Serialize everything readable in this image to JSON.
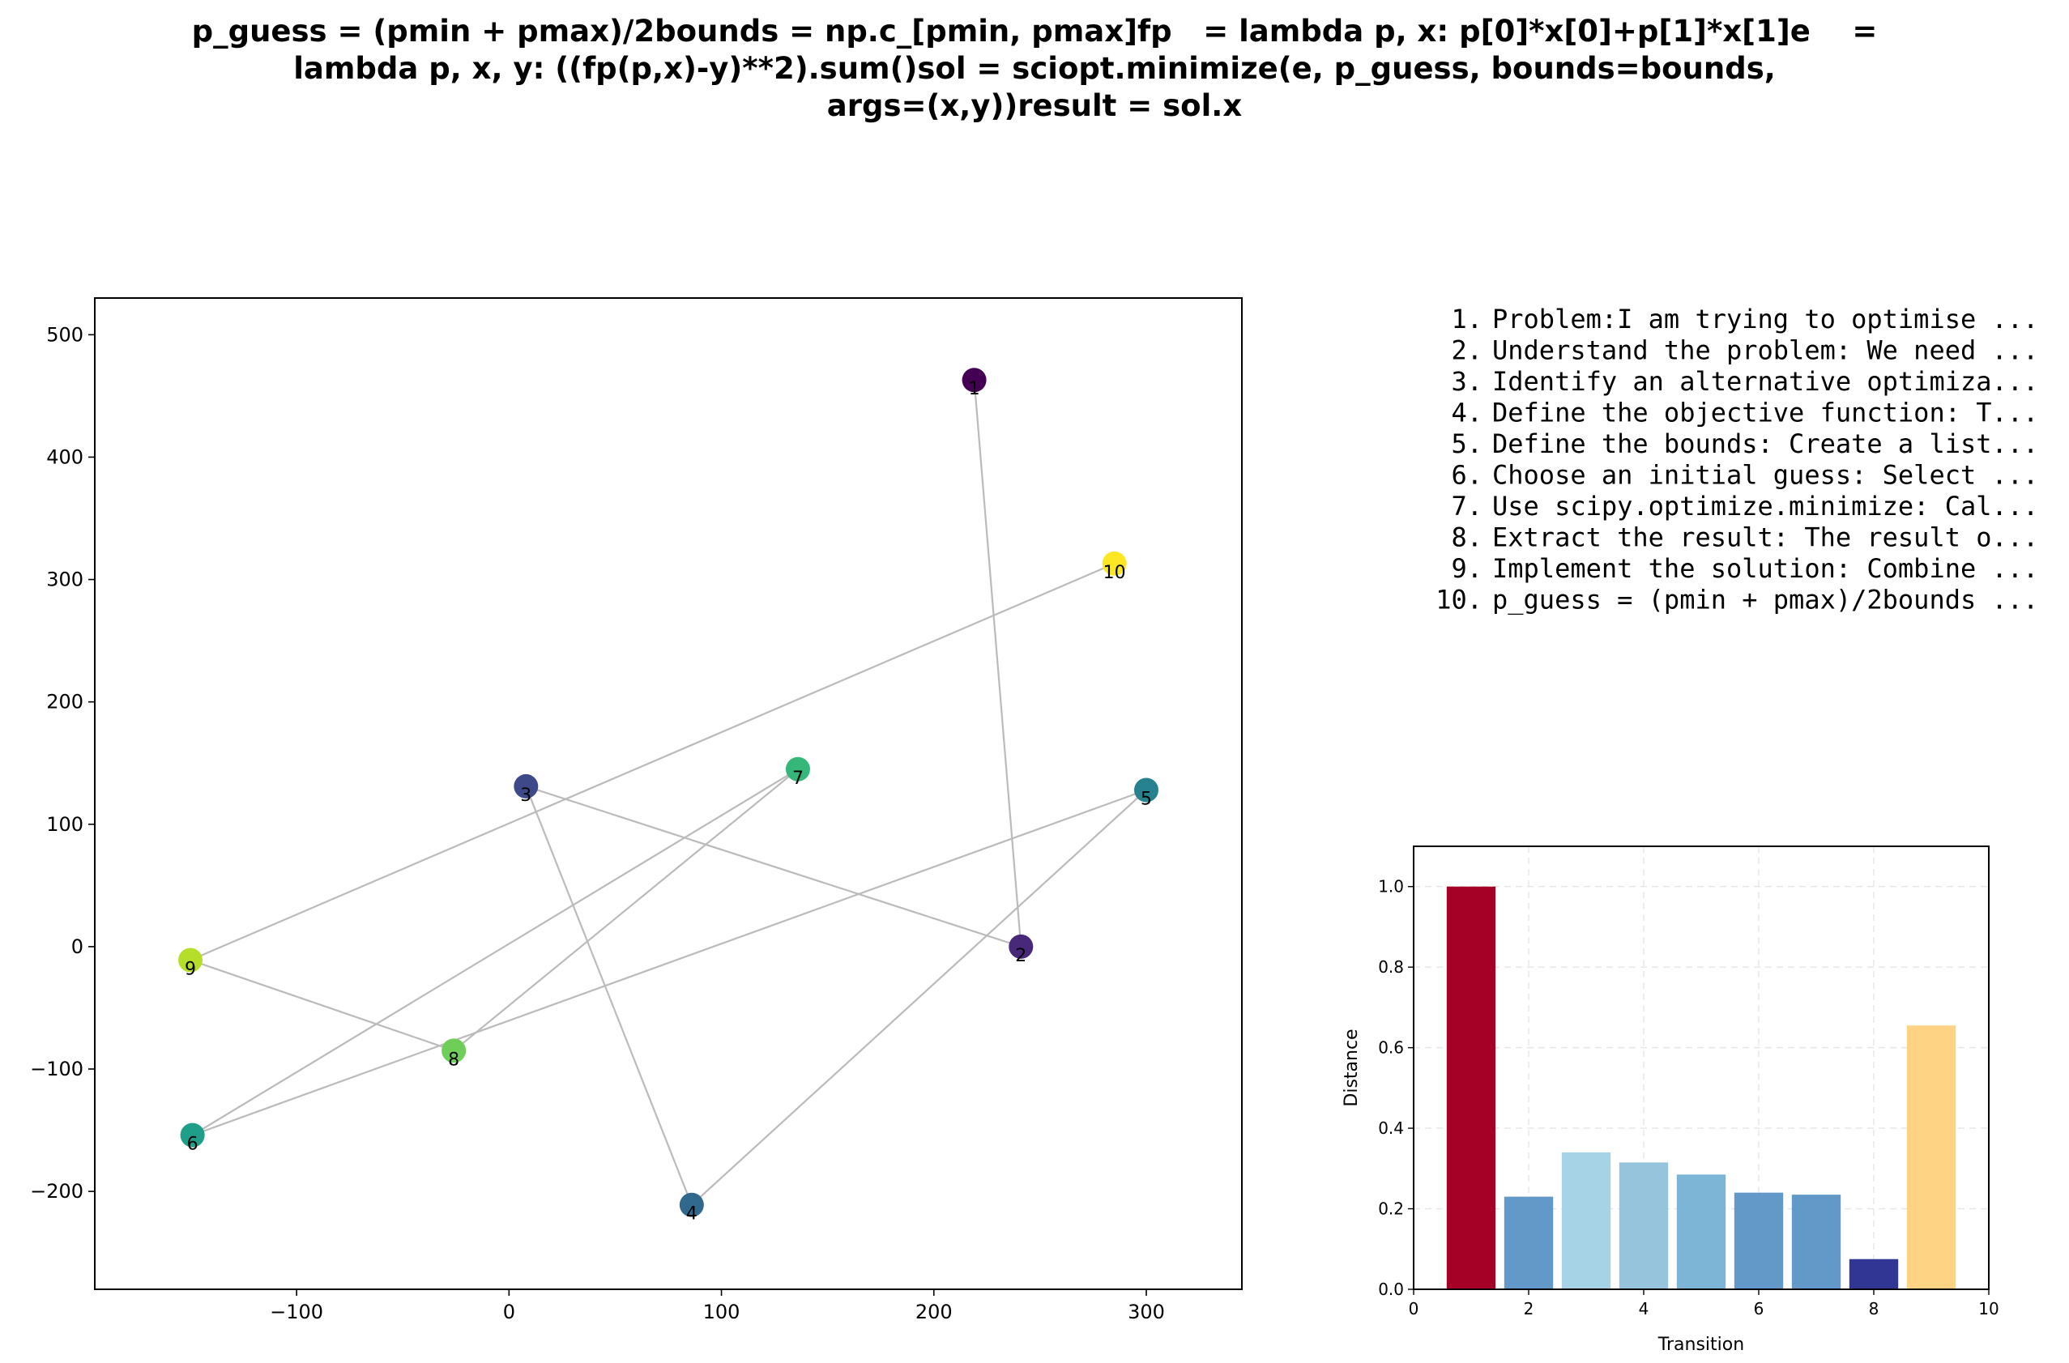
{
  "title_lines": [
    "p_guess = (pmin + pmax)/2bounds = np.c_[pmin, pmax]fp   = lambda p, x: p[0]*x[0]+p[1]*x[1]e    =",
    "lambda p, x, y: ((fp(p,x)-y)**2).sum()sol = sciopt.minimize(e, p_guess, bounds=bounds,",
    "args=(x,y))result = sol.x"
  ],
  "steps": [
    {
      "num": "1.",
      "text": "Problem:I am trying to optimise ..."
    },
    {
      "num": "2.",
      "text": "Understand the problem: We need ..."
    },
    {
      "num": "3.",
      "text": "Identify an alternative optimiza..."
    },
    {
      "num": "4.",
      "text": "Define the objective function: T..."
    },
    {
      "num": "5.",
      "text": "Define the bounds: Create a list..."
    },
    {
      "num": "6.",
      "text": "Choose an initial guess: Select ..."
    },
    {
      "num": "7.",
      "text": "Use scipy.optimize.minimize: Cal..."
    },
    {
      "num": "8.",
      "text": "Extract the result: The result o..."
    },
    {
      "num": "9.",
      "text": "Implement the solution: Combine ..."
    },
    {
      "num": "10.",
      "text": "p_guess = (pmin + pmax)/2bounds ..."
    }
  ],
  "chart_data": [
    {
      "type": "scatter",
      "xlim": [
        -195,
        345
      ],
      "ylim": [
        -280,
        530
      ],
      "xticks": [
        -100,
        0,
        100,
        200,
        300
      ],
      "yticks": [
        -200,
        -100,
        0,
        100,
        200,
        300,
        400,
        500
      ],
      "points": [
        {
          "label": "1",
          "x": 219,
          "y": 463,
          "color": "#440154"
        },
        {
          "label": "2",
          "x": 241,
          "y": 0,
          "color": "#482878"
        },
        {
          "label": "3",
          "x": 8,
          "y": 131,
          "color": "#3e4989"
        },
        {
          "label": "4",
          "x": 86,
          "y": -211,
          "color": "#31688e"
        },
        {
          "label": "5",
          "x": 300,
          "y": 128,
          "color": "#26828e"
        },
        {
          "label": "6",
          "x": -149,
          "y": -154,
          "color": "#1f9e89"
        },
        {
          "label": "7",
          "x": 136,
          "y": 145,
          "color": "#35b779"
        },
        {
          "label": "8",
          "x": -26,
          "y": -85,
          "color": "#6ece58"
        },
        {
          "label": "9",
          "x": -150,
          "y": -11,
          "color": "#b5de2b"
        },
        {
          "label": "10",
          "x": 285,
          "y": 313,
          "color": "#fde725"
        }
      ],
      "path_color": "#bbbbbb"
    },
    {
      "type": "bar",
      "xlabel": "Transition",
      "ylabel": "Distance",
      "xlim": [
        0,
        10
      ],
      "ylim": [
        0,
        1.1
      ],
      "xticks": [
        0,
        2,
        4,
        6,
        8,
        10
      ],
      "yticks": [
        0.0,
        0.2,
        0.4,
        0.6,
        0.8,
        1.0
      ],
      "categories": [
        1,
        2,
        3,
        4,
        5,
        6,
        7,
        8,
        9
      ],
      "values": [
        1.0,
        0.23,
        0.34,
        0.315,
        0.285,
        0.24,
        0.235,
        0.075,
        0.655
      ],
      "colors": [
        "#a50026",
        "#6399c9",
        "#a6d3e6",
        "#96c4dd",
        "#7db5d7",
        "#6399c9",
        "#6399c9",
        "#313695",
        "#fed384"
      ],
      "grid": true
    }
  ]
}
